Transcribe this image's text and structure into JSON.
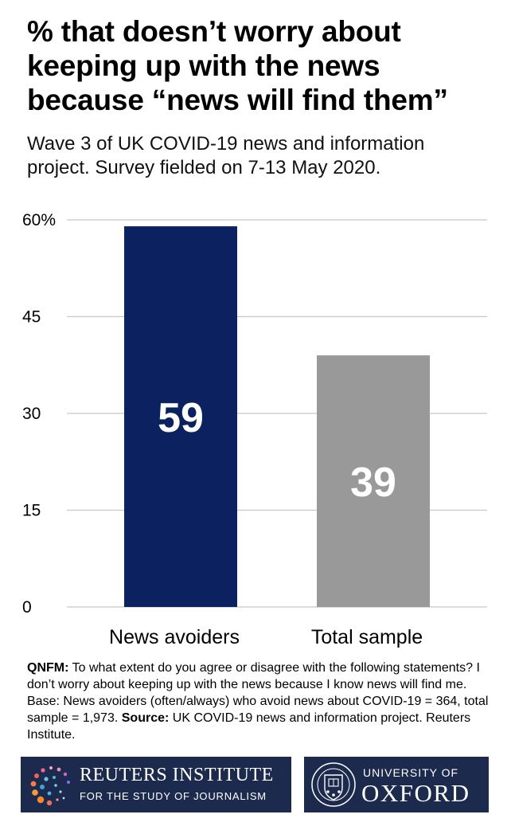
{
  "header": {
    "title_lines": [
      "% that doesn’t worry about",
      "keeping up with the news",
      "because “news will find them”"
    ],
    "subtitle_lines": [
      "Wave 3 of UK COVID-19 news and information",
      "project. Survey fielded on 7-13 May 2020."
    ]
  },
  "chart_data": {
    "type": "bar",
    "title": "% that doesn’t worry about keeping up with the news because “news will find them”",
    "categories": [
      "News avoiders",
      "Total sample"
    ],
    "values": [
      59,
      39
    ],
    "value_labels": [
      "59",
      "39"
    ],
    "bar_colors": [
      "#0b2160",
      "#999999"
    ],
    "ylim": [
      0,
      60
    ],
    "yticks": [
      0,
      15,
      30,
      45,
      60
    ],
    "ytick_labels": [
      "0",
      "15",
      "30",
      "45",
      "60%"
    ],
    "grid": true,
    "gridline_color": "#c8c8c8",
    "legend": "none"
  },
  "footnote": {
    "qnfm_label": "QNFM:",
    "question": " To what extent do you agree or disagree with the following statements? I don’t worry about keeping up with the news because I know news will find me. Base: News avoiders (often/always) who avoid news about COVID-19 = 364, total sample = 1,973. ",
    "source_label": "Source:",
    "source": " UK COVID-19 news and information project. Reuters Institute."
  },
  "logos": {
    "reuters_name": "REUTERS INSTITUTE",
    "reuters_sub": "FOR THE STUDY OF JOURNALISM",
    "oxford_univ": "UNIVERSITY OF",
    "oxford_name": "OXFORD",
    "logo_background": "#1c2a4d"
  }
}
